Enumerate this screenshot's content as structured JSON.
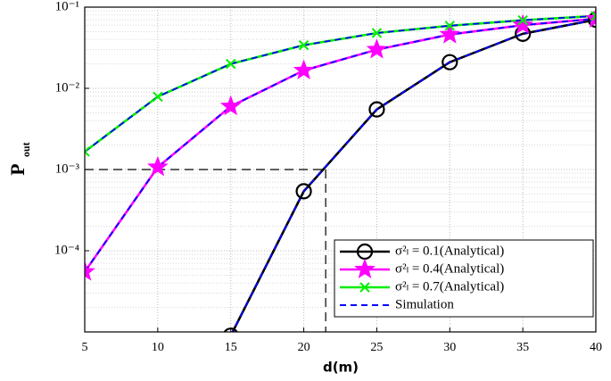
{
  "chart_data": {
    "type": "line",
    "xlabel": "d(m)",
    "ylabel": [
      "P",
      "out"
    ],
    "x": [
      5,
      10,
      15,
      20,
      25,
      30,
      35,
      40
    ],
    "series": [
      {
        "name": "σ²ₗ = 0.1(Analytical)",
        "color": "#000000",
        "marker": "circle",
        "values": [
          null,
          null,
          9e-06,
          0.00054,
          0.0055,
          0.021,
          0.047,
          0.07
        ]
      },
      {
        "name": "σ²ₗ = 0.4(Analytical)",
        "color": "#ff00ff",
        "marker": "star",
        "values": [
          5.5e-05,
          0.00107,
          0.006,
          0.0166,
          0.03,
          0.046,
          0.06,
          0.072
        ]
      },
      {
        "name": "σ²ₗ = 0.7(Analytical)",
        "color": "#00ee00",
        "marker": "x",
        "values": [
          0.00166,
          0.0079,
          0.02,
          0.034,
          0.048,
          0.059,
          0.069,
          0.078
        ]
      },
      {
        "name": "Simulation",
        "color": "#0000ff",
        "dashed": true,
        "overlays": [
          0,
          1,
          2
        ]
      }
    ],
    "xlim": [
      5,
      40
    ],
    "xticks": [
      5,
      10,
      15,
      20,
      25,
      30,
      35,
      40
    ],
    "ylim": [
      1e-05,
      0.1
    ],
    "yscale": "log",
    "yticks": [
      {
        "value": 0.1,
        "label": "10⁻¹"
      },
      {
        "value": 0.01,
        "label": "10⁻²"
      },
      {
        "value": 0.001,
        "label": "10⁻³"
      },
      {
        "value": 0.0001,
        "label": "10⁻⁴"
      }
    ],
    "grid": true,
    "legend": "lower right",
    "reference": {
      "x": 21.5,
      "y": 0.001
    }
  }
}
